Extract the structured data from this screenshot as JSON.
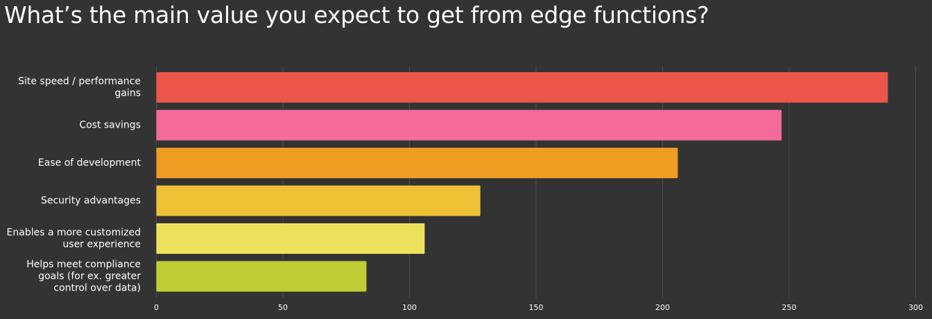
{
  "chart_data": {
    "type": "bar",
    "orientation": "horizontal",
    "title": "What’s the main value you expect to get from edge functions?",
    "categories": [
      [
        "Site speed / performance",
        "gains"
      ],
      [
        "Cost savings"
      ],
      [
        "Ease of development"
      ],
      [
        "Security advantages"
      ],
      [
        "Enables a more customized",
        "user experience"
      ],
      [
        "Helps meet compliance",
        "goals (for ex. greater",
        "control over data)"
      ]
    ],
    "values": [
      289,
      247,
      206,
      128,
      106,
      83
    ],
    "colors": [
      "#ec5549",
      "#f46b9b",
      "#ef9c22",
      "#eec033",
      "#ede15c",
      "#c0cd34"
    ],
    "xlim": [
      0,
      300
    ],
    "xticks": [
      "0",
      "50",
      "100",
      "150",
      "200",
      "250",
      "300"
    ],
    "grid": true
  }
}
